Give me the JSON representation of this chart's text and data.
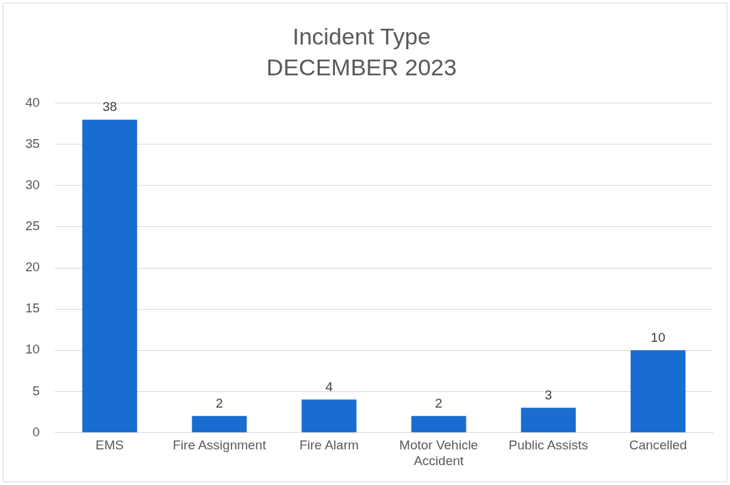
{
  "chart_data": {
    "type": "bar",
    "title": "Incident Type",
    "subtitle": "DECEMBER 2023",
    "categories": [
      "EMS",
      "Fire Assignment",
      "Fire Alarm",
      "Motor Vehicle Accident",
      "Public Assists",
      "Cancelled"
    ],
    "values": [
      38,
      2,
      4,
      2,
      3,
      10
    ],
    "color": "#1a6dd0",
    "ylim": [
      0,
      40
    ],
    "yticks": [
      0,
      5,
      10,
      15,
      20,
      25,
      30,
      35,
      40
    ],
    "grid": "y",
    "data_labels": true,
    "legend": false
  }
}
